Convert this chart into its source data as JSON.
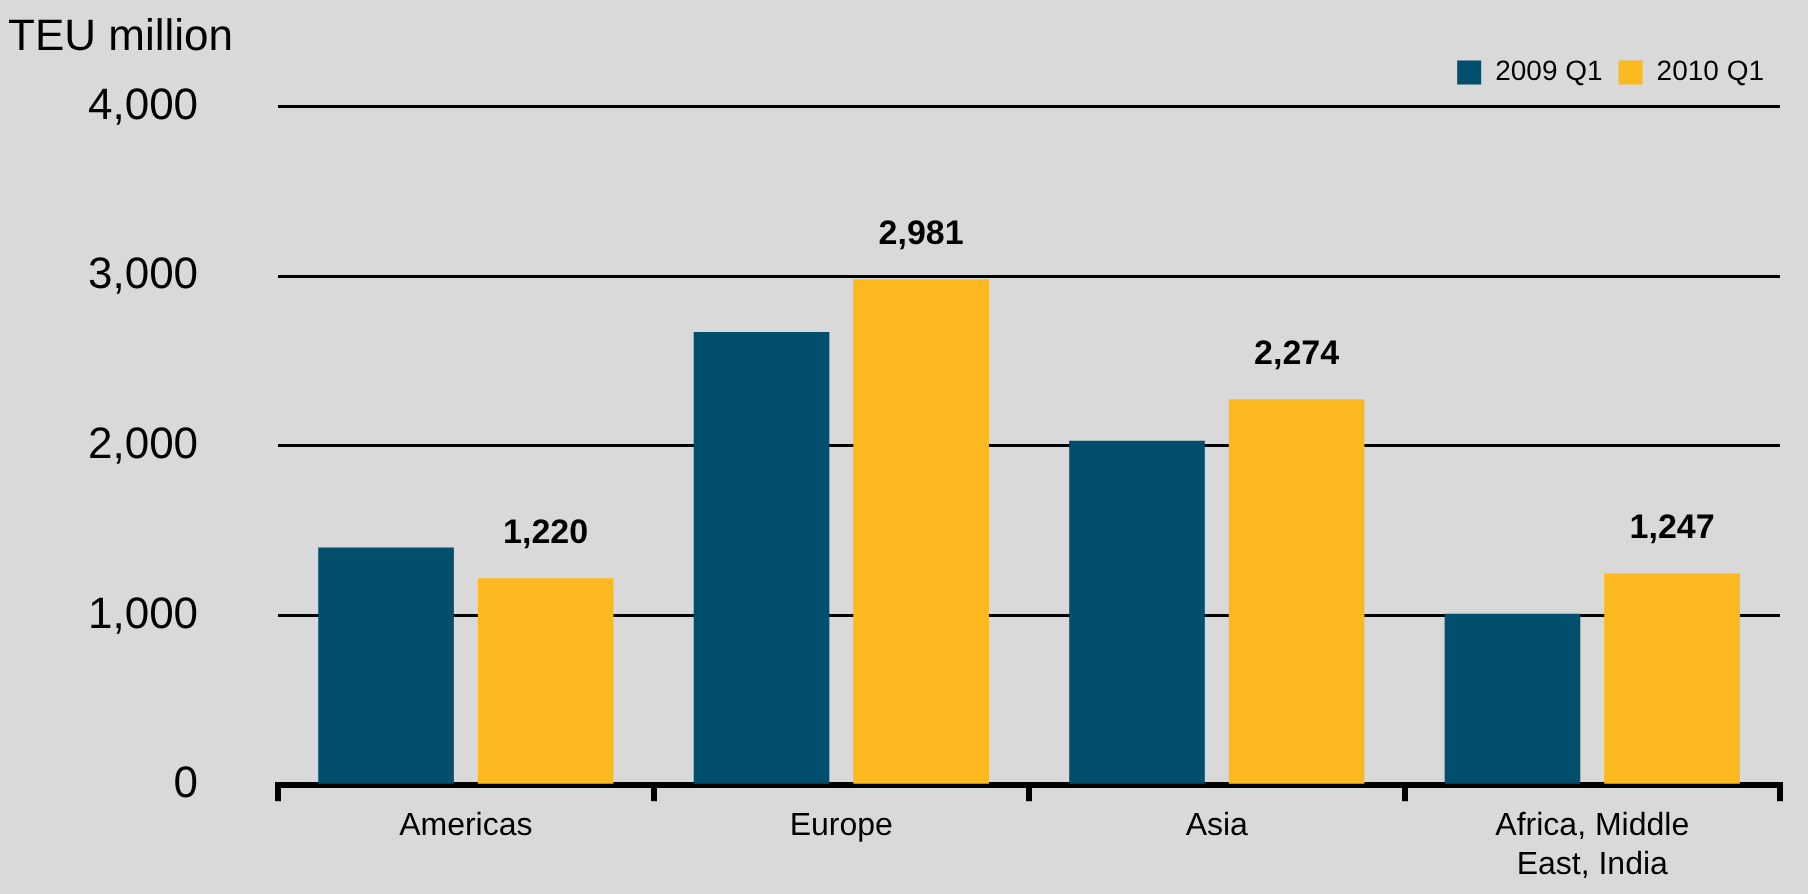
{
  "chart_data": {
    "type": "bar",
    "ylabel": "TEU million",
    "categories": [
      "Americas",
      "Europe",
      "Asia",
      "Africa, Middle East, India"
    ],
    "series": [
      {
        "name": "2009 Q1",
        "color": "#024f6d",
        "values": [
          1400,
          2670,
          2030,
          1010
        ]
      },
      {
        "name": "2010 Q1",
        "color": "#fbb81f",
        "values": [
          1220,
          2981,
          2274,
          1247
        ],
        "value_labels": [
          "1,220",
          "2,981",
          "2,274",
          "1,247"
        ]
      }
    ],
    "ylim": [
      0,
      4000
    ],
    "yticks": [
      {
        "value": 0,
        "label": "0"
      },
      {
        "value": 1000,
        "label": "1,000"
      },
      {
        "value": 2000,
        "label": "2,000"
      },
      {
        "value": 3000,
        "label": "3,000"
      },
      {
        "value": 4000,
        "label": "4,000"
      }
    ],
    "grid": "y",
    "legend": "top right"
  }
}
